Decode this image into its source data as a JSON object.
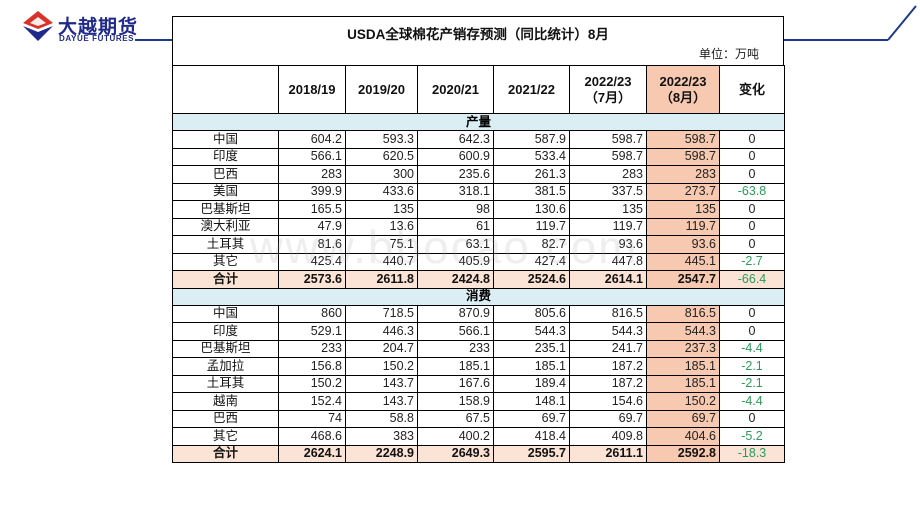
{
  "brand": {
    "name_cn": "大越期货",
    "name_en": "DAYUE FUTURES"
  },
  "doc": {
    "title": "USDA全球棉花产销存预测（同比统计）8月",
    "unit": "单位：万吨"
  },
  "watermark": "www.bbocao.com",
  "headers": [
    "",
    "2018/19",
    "2019/20",
    "2020/21",
    "2021/22",
    "2022/23\n（7月）",
    "2022/23\n（8月）",
    "变化"
  ],
  "sections": [
    {
      "title": "产量",
      "rows": [
        {
          "label": "中国",
          "values": [
            "604.2",
            "593.3",
            "642.3",
            "587.9",
            "598.7",
            "598.7"
          ],
          "change": "0"
        },
        {
          "label": "印度",
          "values": [
            "566.1",
            "620.5",
            "600.9",
            "533.4",
            "598.7",
            "598.7"
          ],
          "change": "0"
        },
        {
          "label": "巴西",
          "values": [
            "283",
            "300",
            "235.6",
            "261.3",
            "283",
            "283"
          ],
          "change": "0"
        },
        {
          "label": "美国",
          "values": [
            "399.9",
            "433.6",
            "318.1",
            "381.5",
            "337.5",
            "273.7"
          ],
          "change": "-63.8"
        },
        {
          "label": "巴基斯坦",
          "values": [
            "165.5",
            "135",
            "98",
            "130.6",
            "135",
            "135"
          ],
          "change": "0"
        },
        {
          "label": "澳大利亚",
          "values": [
            "47.9",
            "13.6",
            "61",
            "119.7",
            "119.7",
            "119.7"
          ],
          "change": "0"
        },
        {
          "label": "土耳其",
          "values": [
            "81.6",
            "75.1",
            "63.1",
            "82.7",
            "93.6",
            "93.6"
          ],
          "change": "0"
        },
        {
          "label": "其它",
          "values": [
            "425.4",
            "440.7",
            "405.9",
            "427.4",
            "447.8",
            "445.1"
          ],
          "change": "-2.7"
        }
      ],
      "total": {
        "label": "合计",
        "values": [
          "2573.6",
          "2611.8",
          "2424.8",
          "2524.6",
          "2614.1",
          "2547.7"
        ],
        "change": "-66.4"
      }
    },
    {
      "title": "消费",
      "rows": [
        {
          "label": "中国",
          "values": [
            "860",
            "718.5",
            "870.9",
            "805.6",
            "816.5",
            "816.5"
          ],
          "change": "0"
        },
        {
          "label": "印度",
          "values": [
            "529.1",
            "446.3",
            "566.1",
            "544.3",
            "544.3",
            "544.3"
          ],
          "change": "0"
        },
        {
          "label": "巴基斯坦",
          "values": [
            "233",
            "204.7",
            "233",
            "235.1",
            "241.7",
            "237.3"
          ],
          "change": "-4.4"
        },
        {
          "label": "孟加拉",
          "values": [
            "156.8",
            "150.2",
            "185.1",
            "185.1",
            "187.2",
            "185.1"
          ],
          "change": "-2.1"
        },
        {
          "label": "土耳其",
          "values": [
            "150.2",
            "143.7",
            "167.6",
            "189.4",
            "187.2",
            "185.1"
          ],
          "change": "-2.1"
        },
        {
          "label": "越南",
          "values": [
            "152.4",
            "143.7",
            "158.9",
            "148.1",
            "154.6",
            "150.2"
          ],
          "change": "-4.4"
        },
        {
          "label": "巴西",
          "values": [
            "74",
            "58.8",
            "67.5",
            "69.7",
            "69.7",
            "69.7"
          ],
          "change": "0"
        },
        {
          "label": "其它",
          "values": [
            "468.6",
            "383",
            "400.2",
            "418.4",
            "409.8",
            "404.6"
          ],
          "change": "-5.2"
        }
      ],
      "total": {
        "label": "合计",
        "values": [
          "2624.1",
          "2248.9",
          "2649.3",
          "2595.7",
          "2611.1",
          "2592.8"
        ],
        "change": "-18.3"
      }
    }
  ],
  "colors": {
    "brand_blue": "#1f2a8a",
    "brand_red": "#d8332a",
    "section_bg": "#dbeef4",
    "highlight_bg": "#f7c9b0",
    "total_bg": "#fbe4d5",
    "negative": "#2a9a5a"
  }
}
